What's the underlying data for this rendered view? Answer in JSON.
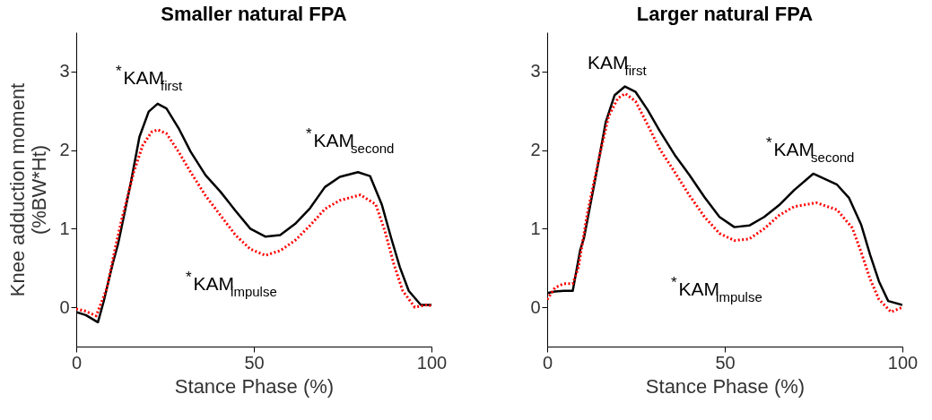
{
  "chart_data": [
    {
      "type": "line",
      "title": "Smaller natural FPA",
      "xlabel": "Stance Phase (%)",
      "ylabel": "Knee adduction moment\n(%BW*Ht)",
      "xlim": [
        0,
        100
      ],
      "xticks": [
        0,
        50,
        100
      ],
      "ylim": [
        -0.5,
        3.5
      ],
      "yticks": [
        0,
        1,
        2,
        3
      ],
      "grid": false,
      "series": [
        {
          "color": "#000000",
          "line_style": "solid",
          "x": [
            0,
            2.7,
            6.1,
            7.7,
            10.3,
            11.8,
            15.3,
            17.8,
            20.4,
            22.9,
            25.4,
            28.8,
            32.2,
            36.4,
            40.6,
            44.8,
            49,
            53.2,
            57.4,
            61.6,
            65.8,
            70,
            74.2,
            79.3,
            82.7,
            86,
            88.6,
            91.1,
            93.6,
            97,
            100
          ],
          "values": [
            -0.06,
            -0.1,
            -0.19,
            0.07,
            0.56,
            0.81,
            1.57,
            2.17,
            2.49,
            2.59,
            2.53,
            2.28,
            1.98,
            1.68,
            1.47,
            1.23,
            1.0,
            0.9,
            0.92,
            1.06,
            1.26,
            1.53,
            1.66,
            1.72,
            1.67,
            1.31,
            0.89,
            0.51,
            0.21,
            0.03,
            0.03
          ]
        },
        {
          "color": "#ff0000",
          "line_style": "dotted",
          "x": [
            0,
            2.7,
            5.6,
            8.6,
            11.1,
            12.6,
            16.2,
            18.7,
            21.2,
            22.9,
            25.4,
            28.8,
            32.2,
            36.4,
            40.6,
            44.8,
            49,
            53.2,
            57.4,
            61.6,
            65.8,
            70,
            74.2,
            80,
            84.3,
            86.9,
            89.4,
            91.9,
            95.3,
            98.7,
            100
          ],
          "values": [
            -0.02,
            -0.05,
            -0.11,
            0.24,
            0.78,
            1.08,
            1.72,
            2.06,
            2.23,
            2.26,
            2.21,
            1.98,
            1.72,
            1.42,
            1.17,
            0.92,
            0.74,
            0.66,
            0.72,
            0.85,
            1.04,
            1.25,
            1.36,
            1.43,
            1.31,
            0.97,
            0.55,
            0.21,
            0.0,
            0.03,
            0.02
          ]
        }
      ],
      "annotations": [
        "$^{*}$KAM$_{first}$",
        "$^{*}$KAM$_{second}$",
        "$^{*}$KAM$_{impulse}$"
      ]
    },
    {
      "type": "line",
      "title": "Larger natural FPA",
      "xlabel": "Stance Phase (%)",
      "xlim": [
        0,
        100
      ],
      "xticks": [
        0,
        50,
        100
      ],
      "ylim": [
        -0.5,
        3.5
      ],
      "yticks": [
        0,
        1,
        2,
        3
      ],
      "grid": false,
      "series": [
        {
          "color": "#000000",
          "line_style": "solid",
          "x": [
            0,
            2.2,
            4.7,
            7.2,
            9.3,
            10.4,
            13.9,
            16.5,
            19,
            21.9,
            24.9,
            28.3,
            31.6,
            35.9,
            40.1,
            44.3,
            48.5,
            52.7,
            56.9,
            61.1,
            65.3,
            69.5,
            74.9,
            81.6,
            85,
            88.4,
            90.9,
            93.4,
            96,
            100
          ],
          "values": [
            0.18,
            0.2,
            0.21,
            0.21,
            0.73,
            0.89,
            1.72,
            2.36,
            2.7,
            2.81,
            2.74,
            2.51,
            2.25,
            1.94,
            1.68,
            1.4,
            1.15,
            1.02,
            1.04,
            1.15,
            1.3,
            1.49,
            1.7,
            1.56,
            1.39,
            1.05,
            0.67,
            0.33,
            0.08,
            0.03
          ]
        },
        {
          "color": "#ff0000",
          "line_style": "dotted",
          "x": [
            0,
            2.2,
            4.7,
            7.2,
            8.8,
            11.3,
            14.8,
            17.3,
            19.9,
            22,
            24.9,
            28.3,
            31.6,
            35.9,
            40.1,
            44.3,
            48.5,
            52.7,
            56.9,
            61.1,
            65.3,
            69.5,
            75.8,
            81.6,
            85.9,
            88.4,
            90.9,
            93.4,
            96.8,
            100
          ],
          "values": [
            0.1,
            0.25,
            0.3,
            0.3,
            0.51,
            1.19,
            1.94,
            2.43,
            2.66,
            2.72,
            2.62,
            2.32,
            2.02,
            1.72,
            1.42,
            1.15,
            0.94,
            0.85,
            0.87,
            1.0,
            1.17,
            1.28,
            1.33,
            1.24,
            1.01,
            0.7,
            0.36,
            0.1,
            -0.06,
            0.0
          ]
        }
      ],
      "annotations": [
        "KAM$_{first}$",
        "$^{*}$KAM$_{second}$",
        "$^{*}$KAM$_{impulse}$"
      ]
    }
  ]
}
